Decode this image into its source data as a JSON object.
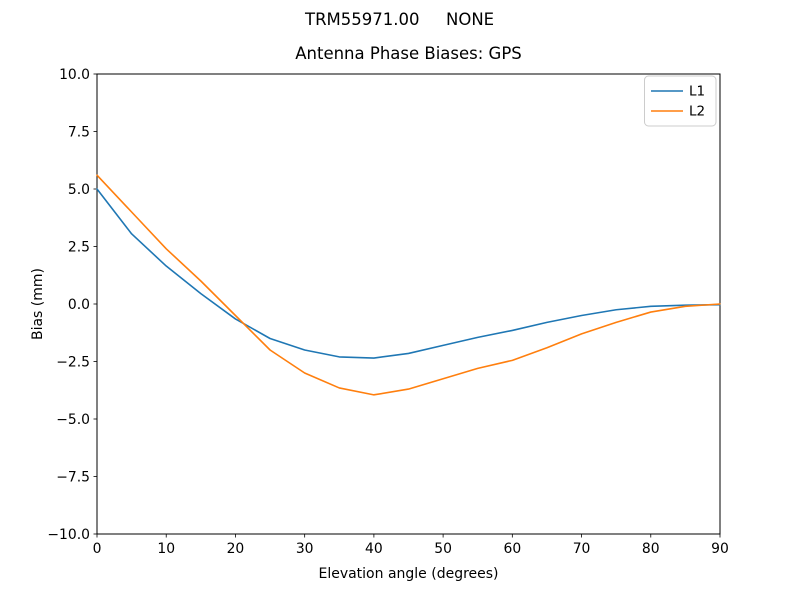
{
  "figure": {
    "background": "#ffffff",
    "text_color": "#000000",
    "spine_color": "#000000"
  },
  "chart_data": {
    "type": "line",
    "suptitle_parts": [
      "TRM55971.00",
      "NONE"
    ],
    "title": "Antenna Phase Biases: GPS",
    "xlabel": "Elevation angle (degrees)",
    "ylabel": "Bias (mm)",
    "xlim": [
      0,
      90
    ],
    "ylim": [
      -10,
      10
    ],
    "xticks": [
      0,
      10,
      20,
      30,
      40,
      50,
      60,
      70,
      80,
      90
    ],
    "yticks": [
      -10,
      -7.5,
      -5,
      -2.5,
      0,
      2.5,
      5,
      7.5,
      10
    ],
    "grid": false,
    "legend_position": "upper right",
    "x": [
      0,
      5,
      10,
      15,
      20,
      25,
      30,
      35,
      40,
      45,
      50,
      55,
      60,
      65,
      70,
      75,
      80,
      85,
      90
    ],
    "series": [
      {
        "name": "L1",
        "color": "#1f77b4",
        "values": [
          5.0,
          3.05,
          1.65,
          0.45,
          -0.65,
          -1.5,
          -2.0,
          -2.3,
          -2.35,
          -2.15,
          -1.8,
          -1.45,
          -1.15,
          -0.8,
          -0.5,
          -0.25,
          -0.1,
          -0.05,
          -0.03
        ]
      },
      {
        "name": "L2",
        "color": "#ff7f0e",
        "values": [
          5.6,
          4.0,
          2.4,
          1.0,
          -0.5,
          -2.0,
          -3.0,
          -3.65,
          -3.95,
          -3.7,
          -3.25,
          -2.8,
          -2.45,
          -1.9,
          -1.3,
          -0.8,
          -0.35,
          -0.1,
          0.0
        ]
      }
    ]
  }
}
